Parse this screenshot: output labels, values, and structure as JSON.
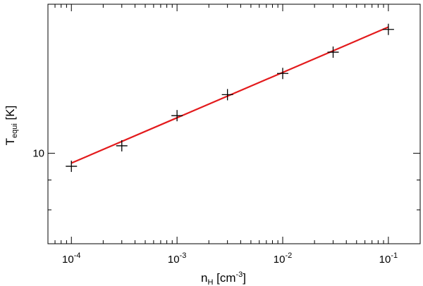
{
  "chart_data": {
    "type": "scatter",
    "xscale": "log",
    "yscale": "log",
    "xlim": [
      6e-05,
      0.2
    ],
    "ylim": [
      7.0,
      18.0
    ],
    "xlabel": {
      "main": "n",
      "sub": "H",
      "unit_pre": " [cm",
      "unit_sup": "-3",
      "unit_post": "]"
    },
    "ylabel": {
      "main": "T",
      "sub": "equi",
      "unit": " [K]"
    },
    "xticks": [
      {
        "value": 0.0001,
        "base": "10",
        "exp": "-4"
      },
      {
        "value": 0.001,
        "base": "10",
        "exp": "-3"
      },
      {
        "value": 0.01,
        "base": "10",
        "exp": "-2"
      },
      {
        "value": 0.1,
        "base": "10",
        "exp": "-1"
      }
    ],
    "yticks": [
      {
        "value": 10,
        "label": "10"
      }
    ],
    "series": [
      {
        "kind": "points",
        "marker": "plus",
        "color": "#000000",
        "x": [
          0.0001,
          0.0003,
          0.001,
          0.003,
          0.01,
          0.03,
          0.1
        ],
        "y": [
          9.5,
          10.3,
          11.6,
          12.6,
          13.7,
          14.9,
          16.3
        ]
      },
      {
        "kind": "line",
        "color": "#e31a1c",
        "x": [
          0.0001,
          0.1
        ],
        "y": [
          9.62,
          16.45
        ]
      }
    ]
  }
}
